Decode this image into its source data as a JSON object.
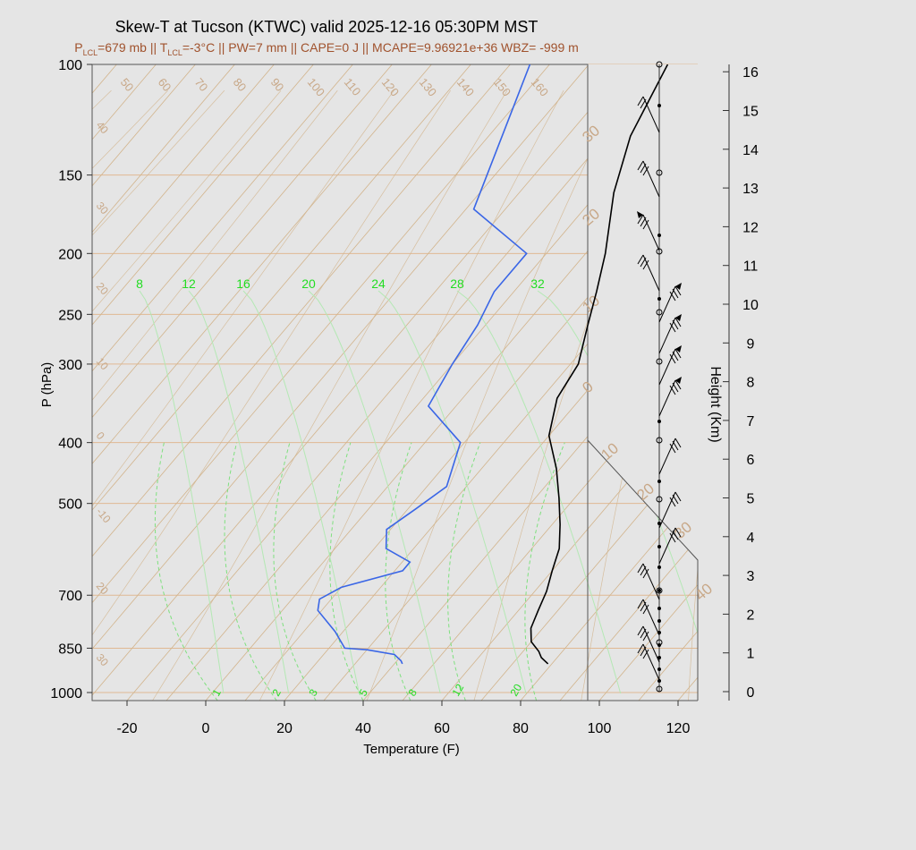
{
  "title": "Skew-T at Tucson (KTWC) valid 2025-12-16 05:30PM MST",
  "subtitle": {
    "p_lcl_label": "P",
    "p_lcl_sub": "LCL",
    "p_lcl_value": "=679 mb ||",
    "t_lcl_label": "T",
    "t_lcl_sub": "LCL",
    "t_lcl_value": "=-3°C ||",
    "rest": "PW=7 mm || CAPE=0 J || MCAPE=9.96921e+36 WBZ= -999 m"
  },
  "colors": {
    "temperature": "#000000",
    "dewpoint": "#3a66e6",
    "isotherm": "#d2b48c",
    "isobar": "#e0b993",
    "mixing_ratio": "#7fe07f",
    "adiabat": "#b4e8b4",
    "mix_label": "#22dd22",
    "label_tan": "#c8a888"
  },
  "chart_data": {
    "type": "line",
    "chart_kind": "skew-t",
    "xlabel": "Temperature (F)",
    "ylabel": "P (hPa)",
    "y2label": "Height (Km)",
    "xlim": [
      -28,
      125
    ],
    "ylim": [
      1030,
      100
    ],
    "x_ticks": [
      "-20",
      "0",
      "20",
      "40",
      "60",
      "80",
      "100",
      "120"
    ],
    "p_ticks": [
      "100",
      "150",
      "200",
      "250",
      "300",
      "400",
      "500",
      "700",
      "850",
      "1000"
    ],
    "height_ticks": [
      "0",
      "1",
      "2",
      "3",
      "4",
      "5",
      "6",
      "7",
      "8",
      "9",
      "10",
      "11",
      "12",
      "13",
      "14",
      "15",
      "16"
    ],
    "isotherm_labels": [
      "50",
      "60",
      "70",
      "80",
      "90",
      "100",
      "110",
      "120",
      "130",
      "140",
      "150",
      "160",
      "40",
      "30",
      "20",
      "10",
      "0",
      "-10",
      "20",
      "30"
    ],
    "isotherm_right_labels": [
      "30",
      "20",
      "10",
      "0",
      "10",
      "20",
      "30",
      "40"
    ],
    "mixing_ratio_top_labels": [
      "8",
      "12",
      "16",
      "20",
      "24",
      "28",
      "32"
    ],
    "mixing_ratio_bottom_labels": [
      "1",
      "2",
      "3",
      "5",
      "8",
      "12",
      "20"
    ],
    "series": [
      {
        "name": "Temperature",
        "points": [
          [
            79,
            900
          ],
          [
            76,
            880
          ],
          [
            74,
            860
          ],
          [
            70,
            830
          ],
          [
            67,
            790
          ],
          [
            65,
            740
          ],
          [
            63,
            690
          ],
          [
            60,
            640
          ],
          [
            57,
            590
          ],
          [
            52,
            540
          ],
          [
            46,
            490
          ],
          [
            39,
            440
          ],
          [
            30,
            390
          ],
          [
            24,
            340
          ],
          [
            22,
            300
          ],
          [
            16,
            260
          ],
          [
            11,
            230
          ],
          [
            5,
            200
          ],
          [
            -6,
            160
          ],
          [
            -14,
            130
          ],
          [
            -20,
            100
          ]
        ]
      },
      {
        "name": "Dewpoint",
        "points": [
          [
            42,
            900
          ],
          [
            41,
            890
          ],
          [
            38,
            870
          ],
          [
            30,
            855
          ],
          [
            24,
            850
          ],
          [
            18,
            800
          ],
          [
            9,
            740
          ],
          [
            7,
            710
          ],
          [
            10,
            680
          ],
          [
            22,
            640
          ],
          [
            22,
            620
          ],
          [
            13,
            590
          ],
          [
            9,
            550
          ],
          [
            12,
            510
          ],
          [
            15,
            470
          ],
          [
            9,
            400
          ],
          [
            -7,
            350
          ],
          [
            -10,
            300
          ],
          [
            -12,
            260
          ],
          [
            -15,
            230
          ],
          [
            -15,
            200
          ],
          [
            -38,
            170
          ],
          [
            -55,
            100
          ]
        ]
      }
    ],
    "wind_barbs_right": true
  }
}
